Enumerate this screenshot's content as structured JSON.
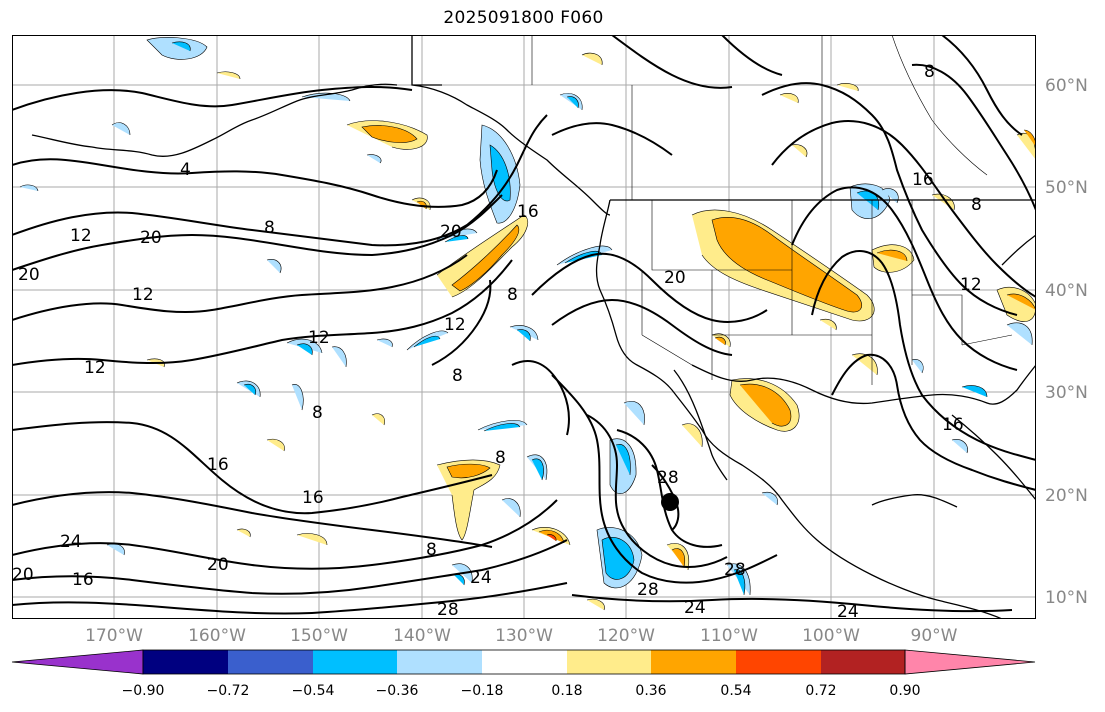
{
  "title": "2025091800 F060",
  "lat_labels": [
    "60°N",
    "50°N",
    "40°N",
    "30°N",
    "20°N",
    "10°N"
  ],
  "lon_labels": [
    "170°W",
    "160°W",
    "150°W",
    "140°W",
    "130°W",
    "120°W",
    "110°W",
    "100°W",
    "90°W"
  ],
  "colorbar": {
    "colors": [
      "#9932cc",
      "#000080",
      "#3a5fcd",
      "#00bfff",
      "#afe0ff",
      "#ffffff",
      "#ffec8b",
      "#ffa500",
      "#ff4500",
      "#b22222",
      "#ff85aa"
    ],
    "tick_labels": [
      "−0.90",
      "−0.72",
      "−0.54",
      "−0.36",
      "−0.18",
      "0.18",
      "0.36",
      "0.54",
      "0.72",
      "0.90"
    ]
  },
  "contour_labels": [
    "4",
    "8",
    "8",
    "8",
    "8",
    "8",
    "8",
    "8",
    "8",
    "12",
    "12",
    "12",
    "12",
    "12",
    "12",
    "16",
    "16",
    "16",
    "16",
    "16",
    "16",
    "20",
    "20",
    "20",
    "20",
    "20",
    "20",
    "24",
    "24",
    "24",
    "24",
    "28",
    "28",
    "28",
    "28"
  ],
  "marker": "storm-center"
}
